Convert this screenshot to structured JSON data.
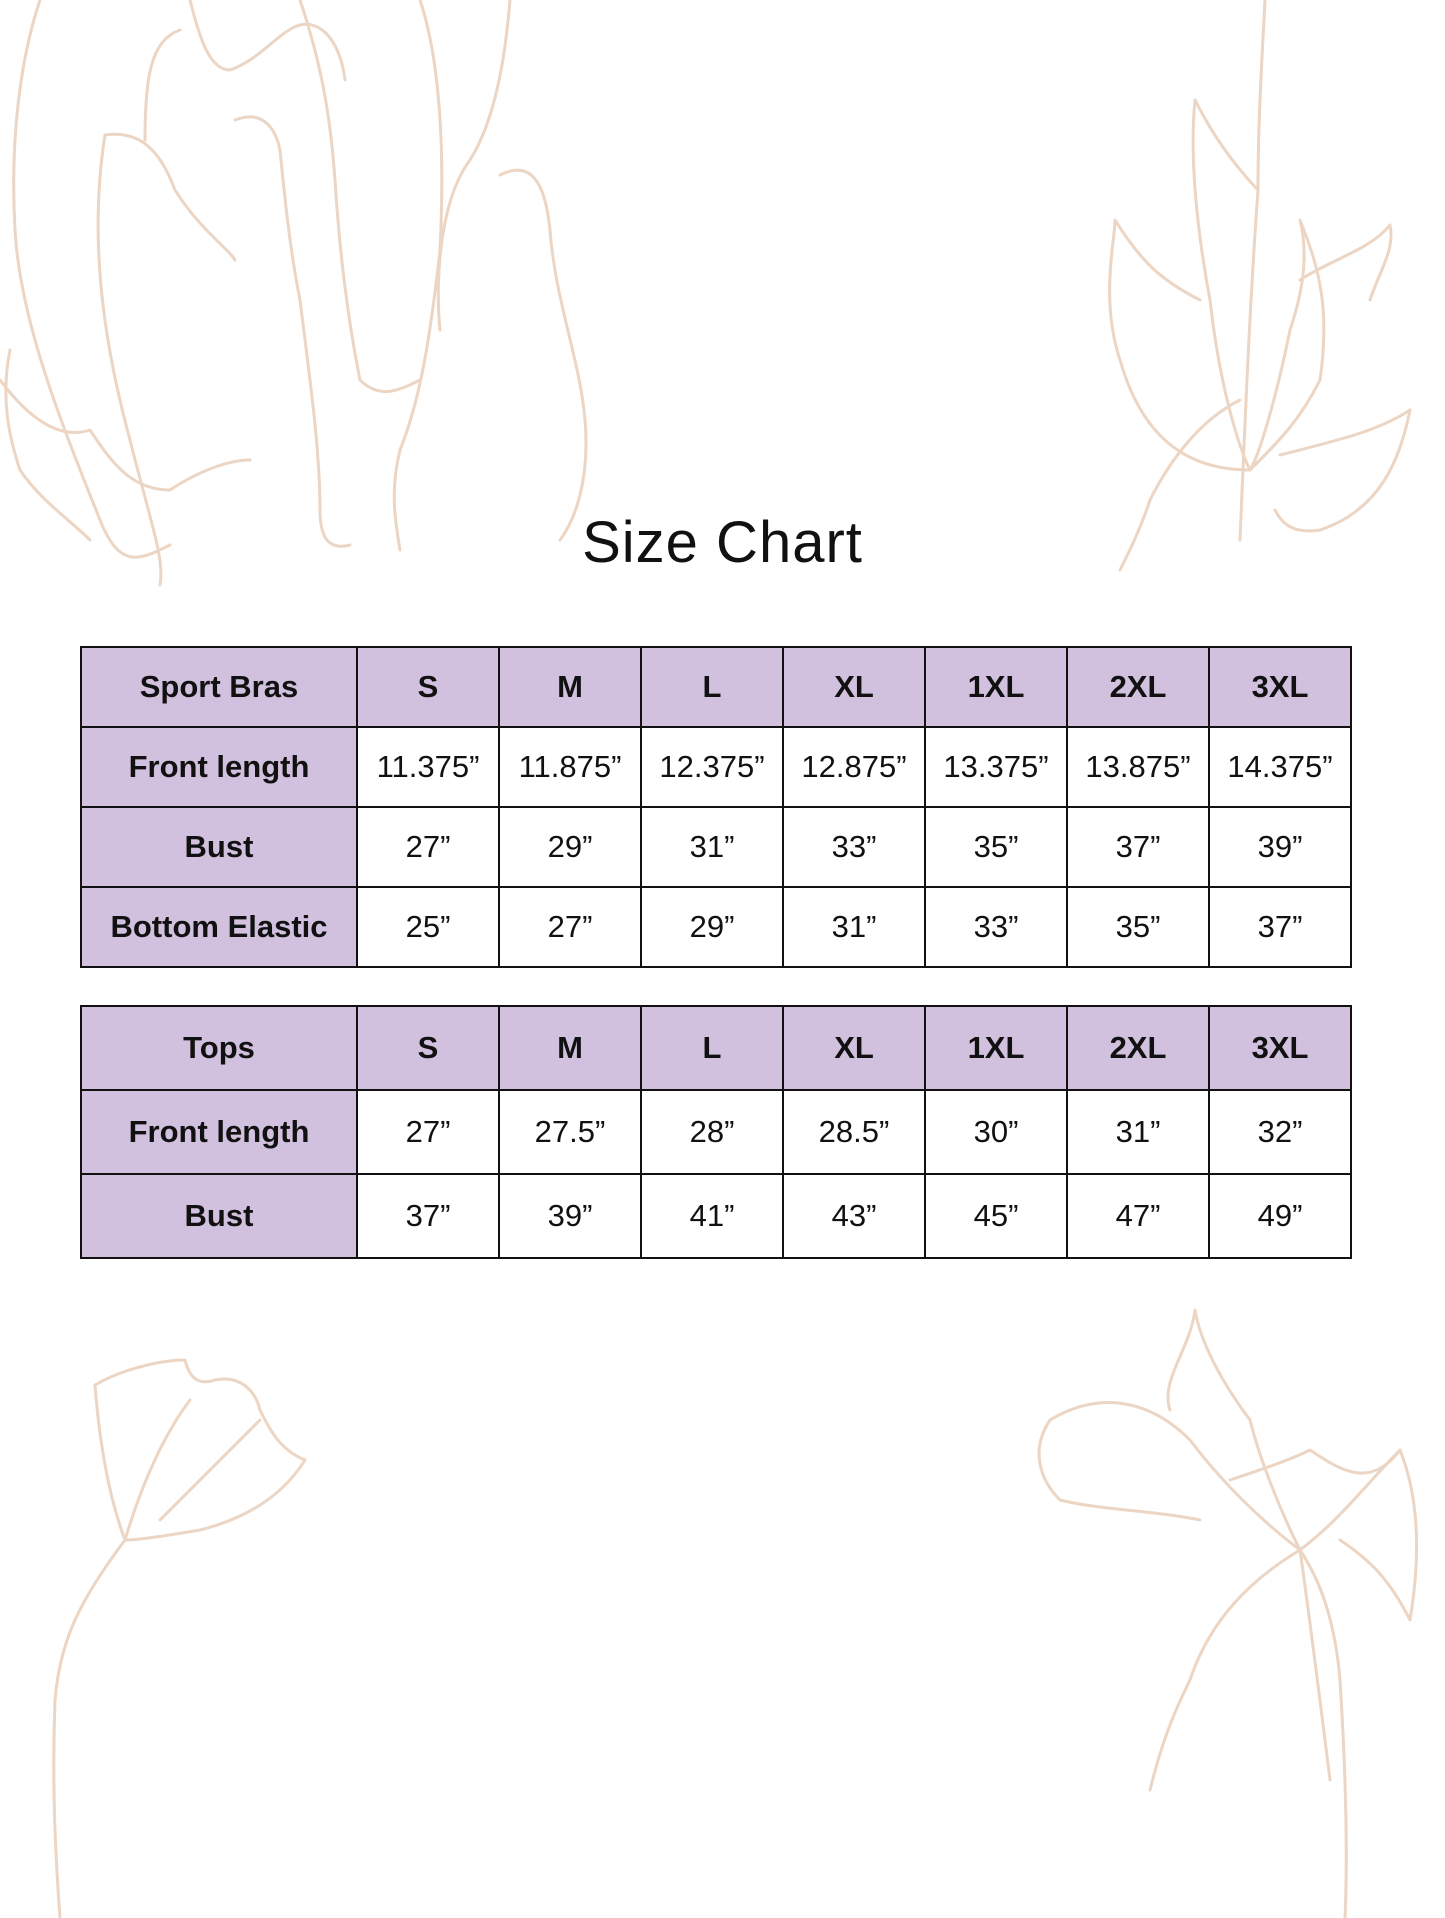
{
  "title": "Size Chart",
  "colors": {
    "header_fill": "#d1c0de",
    "border": "#111111",
    "floral_outline": "#ecd5c3"
  },
  "tables": [
    {
      "name": "Sport Bras",
      "sizes": [
        "S",
        "M",
        "L",
        "XL",
        "1XL",
        "2XL",
        "3XL"
      ],
      "rows": [
        {
          "label": "Front length",
          "values": [
            "11.375”",
            "11.875”",
            "12.375”",
            "12.875”",
            "13.375”",
            "13.875”",
            "14.375”"
          ]
        },
        {
          "label": "Bust",
          "values": [
            "27”",
            "29”",
            "31”",
            "33”",
            "35”",
            "37”",
            "39”"
          ]
        },
        {
          "label": "Bottom Elastic",
          "values": [
            "25”",
            "27”",
            "29”",
            "31”",
            "33”",
            "35”",
            "37”"
          ]
        }
      ]
    },
    {
      "name": "Tops",
      "sizes": [
        "S",
        "M",
        "L",
        "XL",
        "1XL",
        "2XL",
        "3XL"
      ],
      "rows": [
        {
          "label": "Front length",
          "values": [
            "27”",
            "27.5”",
            "28”",
            "28.5”",
            "30”",
            "31”",
            "32”"
          ]
        },
        {
          "label": "Bust",
          "values": [
            "37”",
            "39”",
            "41”",
            "43”",
            "45”",
            "47”",
            "49”"
          ]
        }
      ]
    }
  ]
}
